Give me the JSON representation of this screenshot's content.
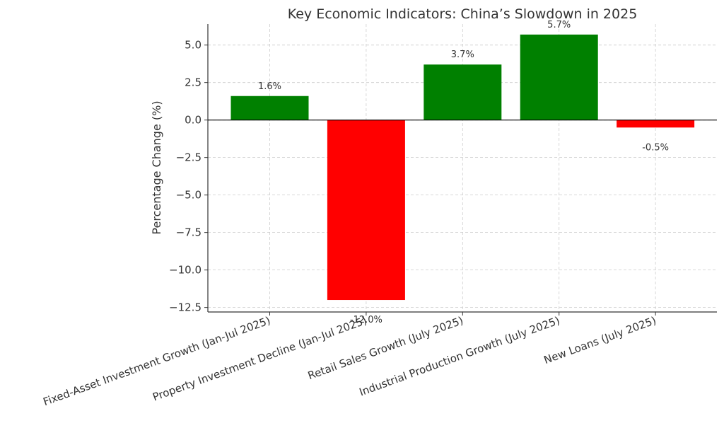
{
  "chart_data": {
    "type": "bar",
    "title": "Key Economic Indicators: China’s Slowdown in 2025",
    "xlabel": "",
    "ylabel": "Percentage Change (%)",
    "categories": [
      "Fixed-Asset Investment Growth (Jan-Jul 2025)",
      "Property Investment Decline (Jan-Jul 2025)",
      "Retail Sales Growth (July 2025)",
      "Industrial Production Growth (July 2025)",
      "New Loans (July 2025)"
    ],
    "values": [
      1.6,
      -12.0,
      3.7,
      5.7,
      -0.5
    ],
    "data_labels": [
      "1.6%",
      "-12.0%",
      "3.7%",
      "5.7%",
      "-0.5%"
    ],
    "ylim": [
      -12.8,
      6.4
    ],
    "yticks": [
      5.0,
      2.5,
      0.0,
      -2.5,
      -5.0,
      -7.5,
      -10.0,
      -12.5
    ],
    "ytick_labels": [
      "5.0",
      "2.5",
      "0.0",
      "−2.5",
      "−5.0",
      "−7.5",
      "−10.0",
      "−12.5"
    ],
    "grid": true,
    "colors": {
      "positive": "#008000",
      "negative": "#ff0000"
    }
  }
}
